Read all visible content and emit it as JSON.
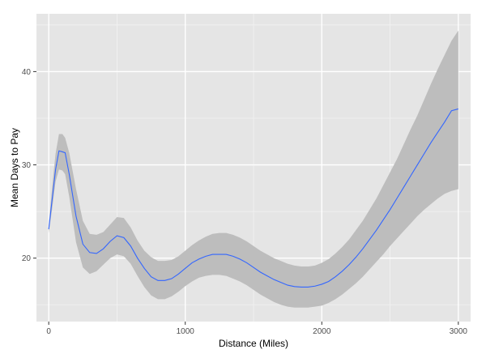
{
  "chart_data": {
    "type": "line",
    "title": "",
    "xlabel": "Distance (Miles)",
    "ylabel": "Mean Days to Pay",
    "xlim": [
      -90,
      3090
    ],
    "ylim": [
      13.2,
      46.2
    ],
    "x_ticks": [
      0,
      1000,
      2000,
      3000
    ],
    "y_ticks": [
      20,
      30,
      40
    ],
    "x_tick_labels": [
      "0",
      "1000",
      "2000",
      "3000"
    ],
    "y_tick_labels": [
      "20",
      "30",
      "40"
    ],
    "grid": true,
    "legend": "none",
    "colors": {
      "panel": "#e5e5e5",
      "grid_major": "#ffffff",
      "grid_minor": "#f2f2f2",
      "ribbon": "#bdbdbd",
      "line": "#3366ff"
    },
    "series": [
      {
        "x": [
          0,
          25,
          50,
          75,
          100,
          120,
          150,
          200,
          250,
          300,
          350,
          400,
          450,
          500,
          550,
          600,
          650,
          700,
          750,
          800,
          850,
          900,
          950,
          1000,
          1050,
          1100,
          1150,
          1200,
          1250,
          1300,
          1350,
          1400,
          1450,
          1500,
          1550,
          1600,
          1650,
          1700,
          1750,
          1800,
          1850,
          1900,
          1950,
          2000,
          2050,
          2100,
          2150,
          2200,
          2250,
          2300,
          2350,
          2400,
          2450,
          2500,
          2550,
          2600,
          2650,
          2700,
          2750,
          2800,
          2850,
          2900,
          2950,
          3000
        ],
        "y": [
          23.1,
          26.3,
          29.5,
          31.5,
          31.4,
          31.3,
          29.0,
          24.5,
          21.5,
          20.6,
          20.5,
          21.0,
          21.8,
          22.4,
          22.2,
          21.3,
          20.0,
          18.9,
          18.0,
          17.6,
          17.6,
          17.8,
          18.3,
          18.9,
          19.5,
          19.9,
          20.2,
          20.4,
          20.4,
          20.4,
          20.2,
          19.9,
          19.5,
          19.0,
          18.5,
          18.1,
          17.7,
          17.4,
          17.1,
          16.95,
          16.9,
          16.9,
          17.0,
          17.2,
          17.5,
          18.0,
          18.6,
          19.3,
          20.1,
          21.0,
          22.0,
          23.0,
          24.1,
          25.2,
          26.4,
          27.6,
          28.8,
          30.0,
          31.2,
          32.4,
          33.5,
          34.6,
          35.8,
          36.0
        ],
        "lower": [
          22.7,
          25.3,
          28.2,
          29.5,
          29.4,
          29.0,
          26.6,
          21.7,
          19.0,
          18.3,
          18.6,
          19.3,
          20.0,
          20.4,
          20.2,
          19.4,
          18.1,
          16.9,
          16.0,
          15.6,
          15.6,
          15.9,
          16.4,
          17.0,
          17.5,
          17.9,
          18.1,
          18.2,
          18.2,
          18.1,
          17.8,
          17.5,
          17.1,
          16.6,
          16.1,
          15.7,
          15.3,
          15.0,
          14.8,
          14.7,
          14.7,
          14.7,
          14.8,
          14.9,
          15.2,
          15.6,
          16.1,
          16.7,
          17.3,
          18.0,
          18.8,
          19.6,
          20.4,
          21.3,
          22.1,
          22.9,
          23.7,
          24.5,
          25.2,
          25.8,
          26.4,
          26.9,
          27.2,
          27.4
        ],
        "upper": [
          23.5,
          27.6,
          31.2,
          33.3,
          33.3,
          32.9,
          31.3,
          27.4,
          24.0,
          22.6,
          22.5,
          22.8,
          23.6,
          24.4,
          24.3,
          23.3,
          21.9,
          20.8,
          20.1,
          19.7,
          19.7,
          19.8,
          20.2,
          20.8,
          21.4,
          21.9,
          22.3,
          22.6,
          22.7,
          22.7,
          22.5,
          22.2,
          21.8,
          21.3,
          20.8,
          20.4,
          20.0,
          19.7,
          19.4,
          19.2,
          19.1,
          19.1,
          19.2,
          19.5,
          19.9,
          20.5,
          21.2,
          22.0,
          23.0,
          24.0,
          25.2,
          26.4,
          27.8,
          29.2,
          30.6,
          32.2,
          33.8,
          35.3,
          37.0,
          38.7,
          40.3,
          41.8,
          43.3,
          44.4
        ]
      }
    ]
  }
}
